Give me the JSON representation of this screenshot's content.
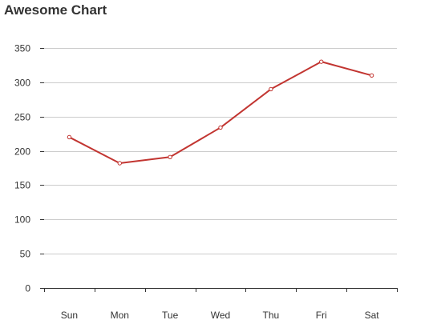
{
  "chart_data": {
    "type": "line",
    "title": "Awesome Chart",
    "categories": [
      "Sun",
      "Mon",
      "Tue",
      "Wed",
      "Thu",
      "Fri",
      "Sat"
    ],
    "series": [
      {
        "values": [
          220,
          182,
          191,
          234,
          290,
          330,
          310
        ],
        "color": "#c23531"
      }
    ],
    "ylim": [
      0,
      350
    ],
    "yticks": [
      0,
      50,
      100,
      150,
      200,
      250,
      300,
      350
    ],
    "grid": true,
    "legend": "none"
  }
}
